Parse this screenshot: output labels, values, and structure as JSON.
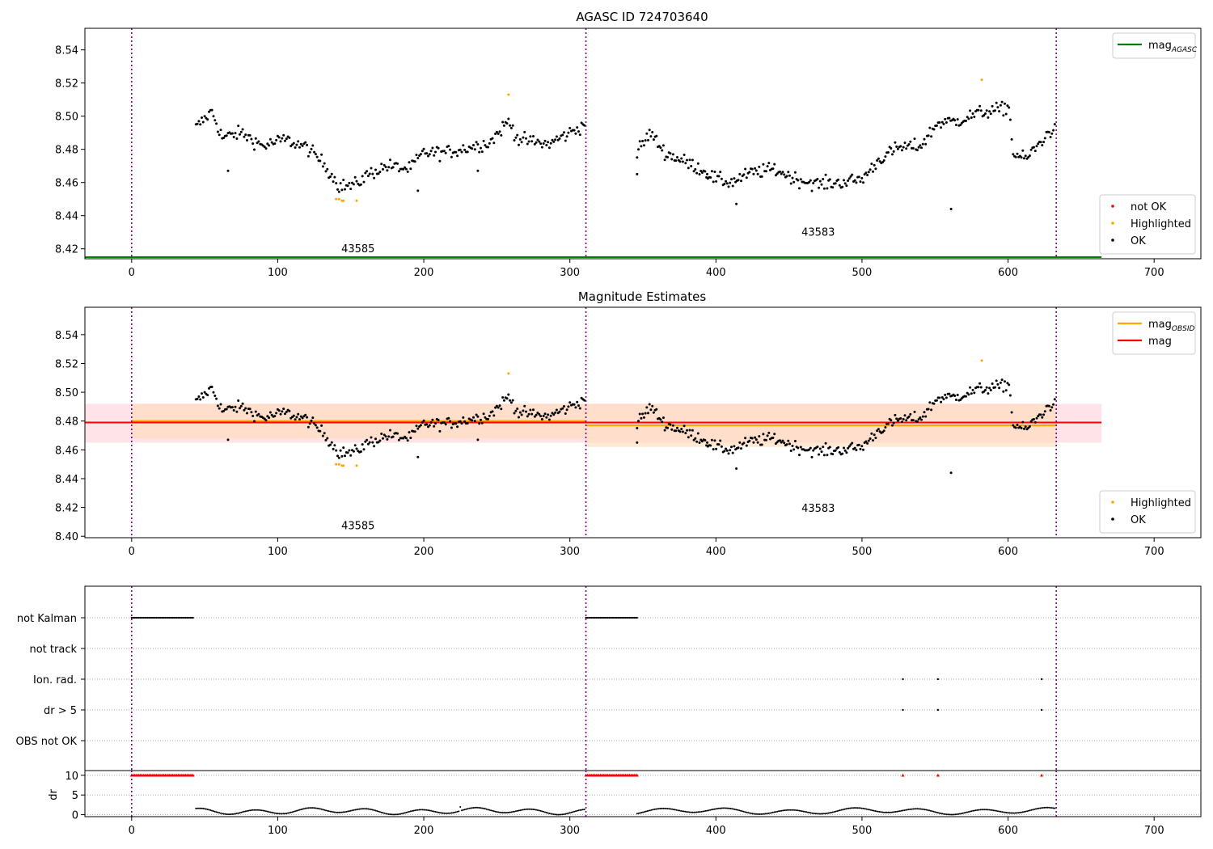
{
  "figure": {
    "title": "AGASC ID 724703640",
    "colors": {
      "ok": "#000000",
      "highlighted": "#ffa500",
      "not_ok": "#ff0000",
      "agasc_line": "#008000",
      "mag_line": "#ff0000",
      "mag_obsid": "#ffa500",
      "divider": "#800080",
      "band_red": "#ffc0cb",
      "band_orange": "#ffdab9"
    }
  },
  "chart_data": [
    {
      "id": "top",
      "type": "scatter",
      "title": "",
      "xlim": [
        -32,
        732
      ],
      "ylim": [
        8.414,
        8.553
      ],
      "xticks": [
        0,
        100,
        200,
        300,
        400,
        500,
        600,
        700
      ],
      "xtick_labels": [
        "0",
        "100",
        "200",
        "300",
        "400",
        "500",
        "600",
        "700"
      ],
      "yticks": [
        8.42,
        8.44,
        8.46,
        8.48,
        8.5,
        8.52,
        8.54
      ],
      "ytick_labels": [
        "8.42",
        "8.44",
        "8.46",
        "8.48",
        "8.50",
        "8.52",
        "8.54"
      ],
      "obsid_boundaries": [
        0,
        311,
        633
      ],
      "obsid_labels": [
        {
          "text": "43585",
          "x": 155,
          "y": 8.418
        },
        {
          "text": "43583",
          "x": 470,
          "y": 8.428
        }
      ],
      "agasc_mag": 8.415,
      "agasc_xrange": [
        -32,
        664
      ],
      "legends": [
        {
          "entries": [
            {
              "label": "mag",
              "sub": "AGASC",
              "kind": "line",
              "color": "#008000"
            }
          ],
          "position": "top-right"
        },
        {
          "entries": [
            {
              "label": "not OK",
              "kind": "dot",
              "color": "#ff0000"
            },
            {
              "label": "Highlighted",
              "kind": "dot",
              "color": "#ffa500"
            },
            {
              "label": "OK",
              "kind": "dot",
              "color": "#000000"
            }
          ],
          "position": "bottom-right"
        }
      ]
    },
    {
      "id": "mid",
      "type": "scatter",
      "title": "Magnitude Estimates",
      "xlim": [
        -32,
        732
      ],
      "ylim": [
        8.399,
        8.559
      ],
      "xticks": [
        0,
        100,
        200,
        300,
        400,
        500,
        600,
        700
      ],
      "xtick_labels": [
        "0",
        "100",
        "200",
        "300",
        "400",
        "500",
        "600",
        "700"
      ],
      "yticks": [
        8.4,
        8.42,
        8.44,
        8.46,
        8.48,
        8.5,
        8.52,
        8.54
      ],
      "ytick_labels": [
        "8.40",
        "8.42",
        "8.44",
        "8.46",
        "8.48",
        "8.50",
        "8.52",
        "8.54"
      ],
      "obsid_boundaries": [
        0,
        311,
        633
      ],
      "obsid_labels": [
        {
          "text": "43585",
          "x": 155,
          "y": 8.405
        },
        {
          "text": "43583",
          "x": 470,
          "y": 8.417
        }
      ],
      "mag": {
        "value": 8.479,
        "low": 8.465,
        "high": 8.492,
        "xrange": [
          -32,
          664
        ]
      },
      "mag_obsid": [
        {
          "xrange": [
            0,
            311
          ],
          "value": 8.48,
          "low": 8.468,
          "high": 8.492
        },
        {
          "xrange": [
            311,
            633
          ],
          "value": 8.477,
          "low": 8.462,
          "high": 8.492
        }
      ],
      "legends": [
        {
          "entries": [
            {
              "label": "mag",
              "sub": "OBSID",
              "kind": "line",
              "color": "#ffa500"
            },
            {
              "label": "mag",
              "kind": "line",
              "color": "#ff0000"
            }
          ],
          "position": "top-right"
        },
        {
          "entries": [
            {
              "label": "Highlighted",
              "kind": "dot",
              "color": "#ffa500"
            },
            {
              "label": "OK",
              "kind": "dot",
              "color": "#000000"
            }
          ],
          "position": "bottom-right"
        }
      ]
    },
    {
      "id": "flags",
      "type": "scatter",
      "xlim": [
        -32,
        732
      ],
      "categories": [
        "not Kalman",
        "not track",
        "Ion. rad.",
        "dr > 5",
        "OBS not OK"
      ],
      "flag_segments": [
        {
          "category": "not Kalman",
          "from": 0,
          "to": 42
        },
        {
          "category": "not Kalman",
          "from": 311,
          "to": 346
        }
      ],
      "flag_points": [
        {
          "category": "Ion. rad.",
          "x": [
            528,
            552,
            623
          ]
        },
        {
          "category": "dr > 5",
          "x": [
            528,
            552,
            623
          ]
        }
      ],
      "obsid_boundaries": [
        0,
        311,
        633
      ]
    },
    {
      "id": "dr",
      "type": "scatter",
      "xlim": [
        -32,
        732
      ],
      "ylim": [
        -0.5,
        11.2
      ],
      "ylabel": "dr",
      "xticks": [
        0,
        100,
        200,
        300,
        400,
        500,
        600,
        700
      ],
      "xtick_labels": [
        "0",
        "100",
        "200",
        "300",
        "400",
        "500",
        "600",
        "700"
      ],
      "yticks": [
        0,
        5,
        10
      ],
      "ytick_labels": [
        "0",
        "5",
        "10"
      ],
      "red_markers": {
        "y": 10,
        "segments": [
          [
            0,
            42
          ],
          [
            311,
            346
          ]
        ],
        "points": [
          528,
          552,
          623
        ]
      },
      "obsid_boundaries": [
        0,
        311,
        633
      ]
    }
  ],
  "series_top": {
    "highlighted": [
      [
        140,
        8.45
      ],
      [
        142,
        8.45
      ],
      [
        144,
        8.449
      ],
      [
        145,
        8.449
      ],
      [
        154,
        8.449
      ],
      [
        258,
        8.513
      ],
      [
        582,
        8.522
      ]
    ],
    "outliers": [
      [
        561,
        8.444
      ],
      [
        414,
        8.447
      ],
      [
        196,
        8.455
      ],
      [
        237,
        8.467
      ],
      [
        66,
        8.467
      ],
      [
        394,
        8.465
      ],
      [
        346,
        8.465
      ]
    ]
  }
}
